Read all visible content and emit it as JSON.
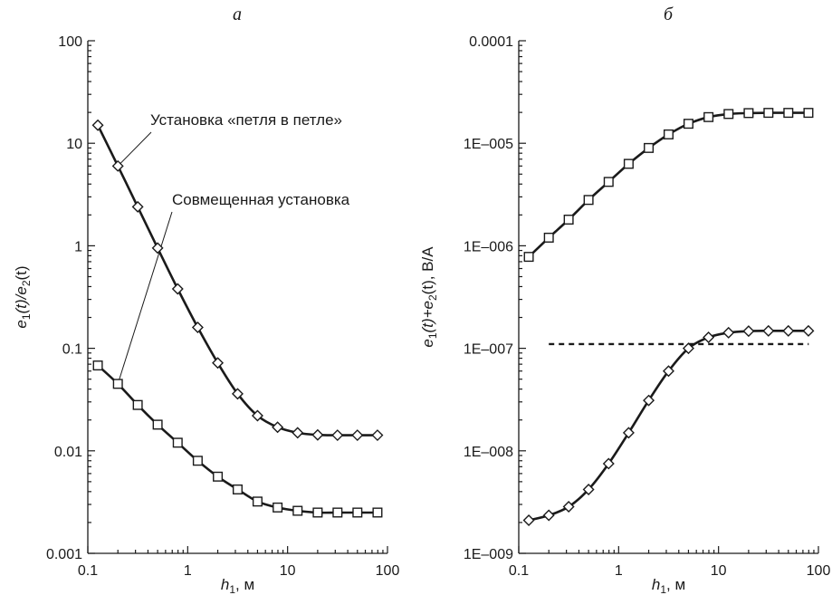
{
  "chart_data": [
    {
      "type": "line",
      "panel_label": "а",
      "x_scale": "log",
      "y_scale": "log",
      "xlim": [
        0.1,
        100
      ],
      "ylim": [
        0.001,
        100
      ],
      "x_ticks": [
        {
          "v": 0.1,
          "label": "0.1"
        },
        {
          "v": 1,
          "label": "1"
        },
        {
          "v": 10,
          "label": "10"
        },
        {
          "v": 100,
          "label": "100"
        }
      ],
      "y_ticks": [
        {
          "v": 0.001,
          "label": "0.001"
        },
        {
          "v": 0.01,
          "label": "0.01"
        },
        {
          "v": 0.1,
          "label": "0.1"
        },
        {
          "v": 1,
          "label": "1"
        },
        {
          "v": 10,
          "label": "10"
        },
        {
          "v": 100,
          "label": "100"
        }
      ],
      "xlabel_main": "h",
      "xlabel_sub": "1",
      "xlabel_unit": ", м",
      "ylabel_parts": [
        "e",
        "1",
        "(t)/e",
        "2",
        "(t)"
      ],
      "x": [
        0.126,
        0.2,
        0.316,
        0.5,
        0.794,
        1.26,
        2,
        3.16,
        5,
        7.94,
        12.6,
        20,
        31.6,
        50,
        79.4
      ],
      "series": [
        {
          "marker": "diamond",
          "values": [
            15,
            6,
            2.4,
            0.95,
            0.38,
            0.16,
            0.072,
            0.036,
            0.022,
            0.017,
            0.015,
            0.0143,
            0.0142,
            0.0142,
            0.0142
          ]
        },
        {
          "marker": "square",
          "values": [
            0.068,
            0.045,
            0.028,
            0.018,
            0.012,
            0.008,
            0.0056,
            0.0042,
            0.0032,
            0.0028,
            0.0026,
            0.0025,
            0.0025,
            0.0025,
            0.0025
          ]
        }
      ],
      "annotations": [
        {
          "text": "Установка «петля в петле»",
          "series_index": 0,
          "point_index": 1
        },
        {
          "text": "Совмещенная установка",
          "series_index": 1,
          "point_index": 1
        }
      ]
    },
    {
      "type": "line",
      "panel_label": "б",
      "x_scale": "log",
      "y_scale": "log",
      "xlim": [
        0.1,
        100
      ],
      "ylim": [
        1e-09,
        0.0001
      ],
      "x_ticks": [
        {
          "v": 0.1,
          "label": "0.1"
        },
        {
          "v": 1,
          "label": "1"
        },
        {
          "v": 10,
          "label": "10"
        },
        {
          "v": 100,
          "label": "100"
        }
      ],
      "y_ticks": [
        {
          "v": 1e-09,
          "label": "1E–009"
        },
        {
          "v": 1e-08,
          "label": "1E–008"
        },
        {
          "v": 1e-07,
          "label": "1E–007"
        },
        {
          "v": 1e-06,
          "label": "1E–006"
        },
        {
          "v": 1e-05,
          "label": "1E–005"
        },
        {
          "v": 0.0001,
          "label": "0.0001"
        }
      ],
      "xlabel_main": "h",
      "xlabel_sub": "1",
      "xlabel_unit": ", м",
      "ylabel_parts": [
        "e",
        "1",
        "(t)+e",
        "2",
        "(t), В/А"
      ],
      "x": [
        0.126,
        0.2,
        0.316,
        0.5,
        0.794,
        1.26,
        2,
        3.16,
        5,
        7.94,
        12.6,
        20,
        31.6,
        50,
        79.4
      ],
      "series": [
        {
          "marker": "square",
          "values": [
            7.8e-07,
            1.2e-06,
            1.8e-06,
            2.8e-06,
            4.2e-06,
            6.3e-06,
            9e-06,
            1.22e-05,
            1.55e-05,
            1.8e-05,
            1.93e-05,
            1.97e-05,
            1.98e-05,
            1.98e-05,
            1.98e-05
          ]
        },
        {
          "marker": "diamond",
          "values": [
            2.1e-09,
            2.35e-09,
            2.85e-09,
            4.2e-09,
            7.5e-09,
            1.5e-08,
            3.1e-08,
            6e-08,
            1e-07,
            1.28e-07,
            1.42e-07,
            1.47e-07,
            1.48e-07,
            1.48e-07,
            1.48e-07
          ]
        }
      ],
      "reference_line": {
        "y": 1.1e-07,
        "x_from": 0.2,
        "x_to": 80,
        "style": "dashed"
      }
    }
  ]
}
